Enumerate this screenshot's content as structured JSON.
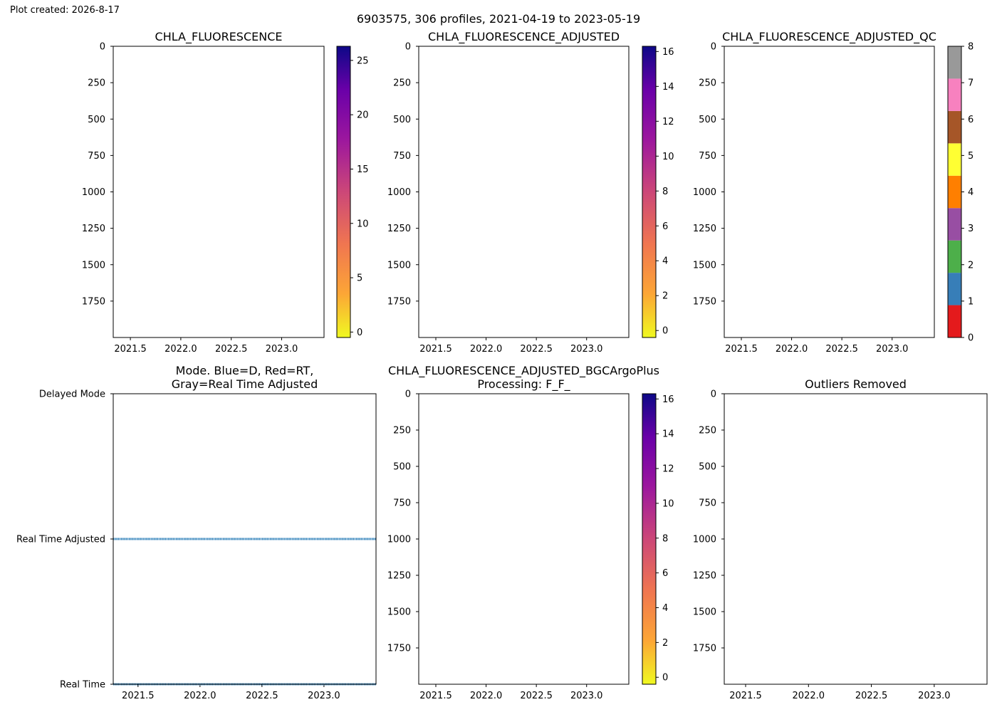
{
  "header": {
    "created": "Plot created: 2026-8-17",
    "suptitle": "6903575, 306 profiles, 2021-04-19 to 2023-05-19"
  },
  "chart_data": [
    {
      "type": "heatmap",
      "title": "CHLA_FLUORESCENCE",
      "xlim": [
        2021.33,
        2023.42
      ],
      "ylim": [
        2000,
        0
      ],
      "xticks": [
        "2021.5",
        "2022.0",
        "2022.5",
        "2023.0"
      ],
      "yticks": [
        "0",
        "250",
        "500",
        "750",
        "1000",
        "1250",
        "1500",
        "1750"
      ],
      "grid": false,
      "values": [],
      "colorbar": {
        "colormap": "plasma_r",
        "range": [
          -0.5,
          26.3
        ],
        "ticks": [
          "0",
          "5",
          "10",
          "15",
          "20",
          "25"
        ]
      }
    },
    {
      "type": "heatmap",
      "title": "CHLA_FLUORESCENCE_ADJUSTED",
      "xlim": [
        2021.33,
        2023.42
      ],
      "ylim": [
        2000,
        0
      ],
      "xticks": [
        "2021.5",
        "2022.0",
        "2022.5",
        "2023.0"
      ],
      "yticks": [
        "0",
        "250",
        "500",
        "750",
        "1000",
        "1250",
        "1500",
        "1750"
      ],
      "grid": false,
      "values": [],
      "colorbar": {
        "colormap": "plasma_r",
        "range": [
          -0.4,
          16.3
        ],
        "ticks": [
          "0",
          "2",
          "4",
          "6",
          "8",
          "10",
          "12",
          "14",
          "16"
        ]
      }
    },
    {
      "type": "heatmap",
      "title": "CHLA_FLUORESCENCE_ADJUSTED_QC",
      "xlim": [
        2021.33,
        2023.42
      ],
      "ylim": [
        2000,
        0
      ],
      "xticks": [
        "2021.5",
        "2022.0",
        "2022.5",
        "2023.0"
      ],
      "yticks": [
        "0",
        "250",
        "500",
        "750",
        "1000",
        "1250",
        "1500",
        "1750"
      ],
      "grid": false,
      "values": [],
      "colorbar": {
        "colormap": "Set1",
        "range": [
          0,
          8
        ],
        "ticks": [
          "0",
          "1",
          "2",
          "3",
          "4",
          "5",
          "6",
          "7",
          "8"
        ],
        "colors": [
          "#e41a1c",
          "#377eb8",
          "#4daf4a",
          "#984ea3",
          "#ff7f00",
          "#ffff33",
          "#a65628",
          "#f781bf",
          "#999999"
        ]
      }
    },
    {
      "type": "scatter",
      "title": "Mode. Blue=D, Red=RT,\nGray=Real Time Adjusted",
      "xlim": [
        2021.3,
        2023.42
      ],
      "xticks": [
        "2021.5",
        "2022.0",
        "2022.5",
        "2023.0"
      ],
      "yticks": [
        "Delayed Mode",
        "Real Time Adjusted",
        "Real Time"
      ],
      "grid": false,
      "series": [
        {
          "color": "#1f77b4",
          "x_range": [
            2021.3,
            2023.42
          ],
          "y": "Real Time Adjusted"
        },
        {
          "color": "#1f77b4",
          "x_range": [
            2021.3,
            2023.42
          ],
          "y": "Real Time"
        }
      ]
    },
    {
      "type": "heatmap",
      "title": "CHLA_FLUORESCENCE_ADJUSTED_BGCArgoPlus\nProcessing: F_F_",
      "xlim": [
        2021.33,
        2023.42
      ],
      "ylim": [
        2000,
        0
      ],
      "xticks": [
        "2021.5",
        "2022.0",
        "2022.5",
        "2023.0"
      ],
      "yticks": [
        "0",
        "250",
        "500",
        "750",
        "1000",
        "1250",
        "1500",
        "1750"
      ],
      "grid": false,
      "values": [],
      "colorbar": {
        "colormap": "plasma_r",
        "range": [
          -0.4,
          16.3
        ],
        "ticks": [
          "0",
          "2",
          "4",
          "6",
          "8",
          "10",
          "12",
          "14",
          "16"
        ]
      }
    },
    {
      "type": "heatmap",
      "title": "Outliers Removed",
      "xlim": [
        2021.33,
        2023.42
      ],
      "ylim": [
        2000,
        0
      ],
      "xticks": [
        "2021.5",
        "2022.0",
        "2022.5",
        "2023.0"
      ],
      "yticks": [
        "0",
        "250",
        "500",
        "750",
        "1000",
        "1250",
        "1500",
        "1750"
      ],
      "grid": false,
      "values": []
    }
  ]
}
